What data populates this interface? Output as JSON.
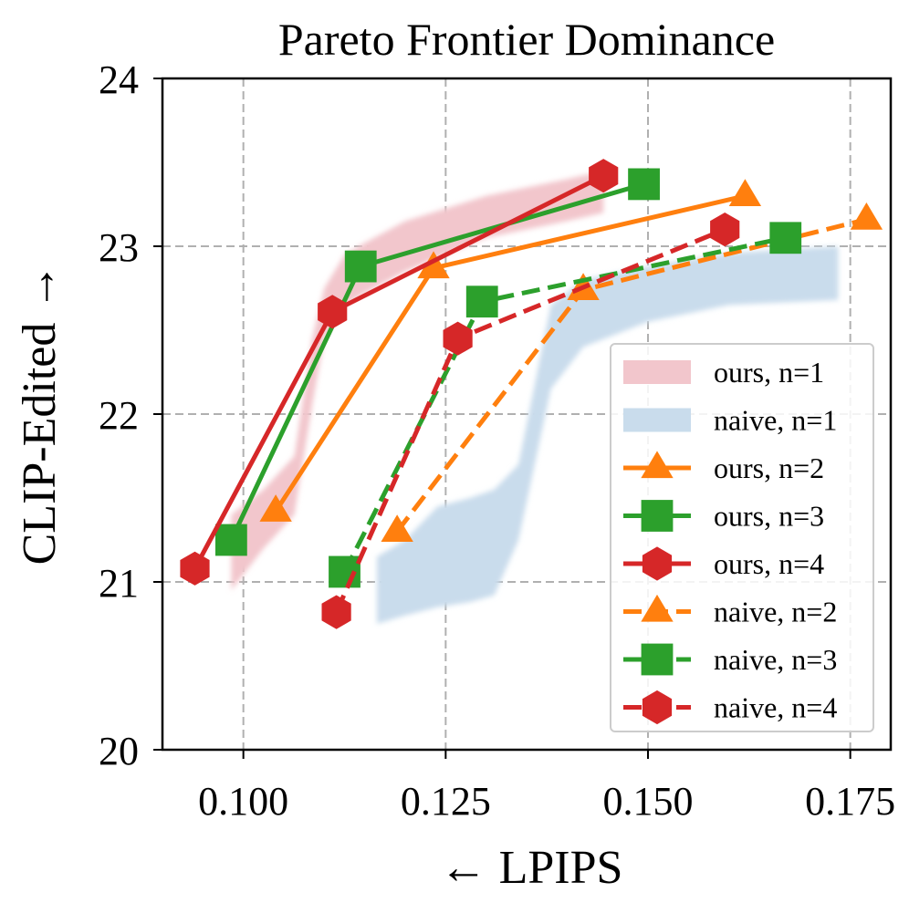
{
  "chart_data": {
    "type": "line",
    "title": "Pareto Frontier Dominance",
    "xlabel": "← LPIPS",
    "ylabel": "CLIP-Edited →",
    "xlim": [
      0.09,
      0.18
    ],
    "ylim": [
      20,
      24
    ],
    "xticks": [
      0.1,
      0.125,
      0.15,
      0.175
    ],
    "xtick_labels": [
      "0.100",
      "0.125",
      "0.150",
      "0.175"
    ],
    "yticks": [
      20,
      21,
      22,
      23,
      24
    ],
    "ytick_labels": [
      "20",
      "21",
      "22",
      "23",
      "24"
    ],
    "grid": true,
    "legend_position": "lower-right",
    "bands": [
      {
        "name": "ours, n=1",
        "color": "#f2c6cc",
        "x": [
          0.0985,
          0.1025,
          0.1063,
          0.1085,
          0.11,
          0.1125,
          0.115,
          0.12,
          0.13,
          0.14,
          0.1445
        ],
        "lower": [
          20.95,
          21.2,
          21.4,
          22.05,
          22.45,
          22.65,
          22.72,
          22.85,
          23.05,
          23.15,
          23.2
        ],
        "upper": [
          21.4,
          21.55,
          21.75,
          22.45,
          22.75,
          22.95,
          23.02,
          23.15,
          23.3,
          23.4,
          23.45
        ]
      },
      {
        "name": "naive, n=1",
        "color": "#c9dcec",
        "x": [
          0.1165,
          0.12,
          0.124,
          0.128,
          0.131,
          0.134,
          0.138,
          0.142,
          0.15,
          0.16,
          0.1735
        ],
        "lower": [
          20.75,
          20.8,
          20.85,
          20.88,
          20.92,
          21.25,
          22.15,
          22.4,
          22.55,
          22.65,
          22.68
        ],
        "upper": [
          21.15,
          21.25,
          21.45,
          21.5,
          21.55,
          21.7,
          22.65,
          22.8,
          22.88,
          22.96,
          23.0
        ]
      }
    ],
    "series": [
      {
        "name": "ours, n=2",
        "style": "solid",
        "marker": "triangle",
        "color": "#ff7f0e",
        "x": [
          0.104,
          0.1235,
          0.162
        ],
        "y": [
          21.42,
          22.87,
          23.3
        ]
      },
      {
        "name": "ours, n=3",
        "style": "solid",
        "marker": "square",
        "color": "#2ca02c",
        "x": [
          0.0985,
          0.1145,
          0.1495
        ],
        "y": [
          21.25,
          22.88,
          23.37
        ]
      },
      {
        "name": "ours, n=4",
        "style": "solid",
        "marker": "hexagon",
        "color": "#d62728",
        "x": [
          0.094,
          0.111,
          0.1445
        ],
        "y": [
          21.08,
          22.61,
          23.42
        ]
      },
      {
        "name": "naive, n=2",
        "style": "dashed",
        "marker": "triangle",
        "color": "#ff7f0e",
        "x": [
          0.119,
          0.142,
          0.177
        ],
        "y": [
          21.3,
          22.74,
          23.16
        ]
      },
      {
        "name": "naive, n=3",
        "style": "dashed",
        "marker": "square",
        "color": "#2ca02c",
        "x": [
          0.1125,
          0.1295,
          0.167
        ],
        "y": [
          21.06,
          22.67,
          23.05
        ]
      },
      {
        "name": "naive, n=4",
        "style": "dashed",
        "marker": "hexagon",
        "color": "#d62728",
        "x": [
          0.1115,
          0.1265,
          0.1595
        ],
        "y": [
          20.82,
          22.45,
          23.1
        ]
      }
    ],
    "legend_order": [
      "ours, n=1",
      "naive, n=1",
      "ours, n=2",
      "ours, n=3",
      "ours, n=4",
      "naive, n=2",
      "naive, n=3",
      "naive, n=4"
    ]
  }
}
